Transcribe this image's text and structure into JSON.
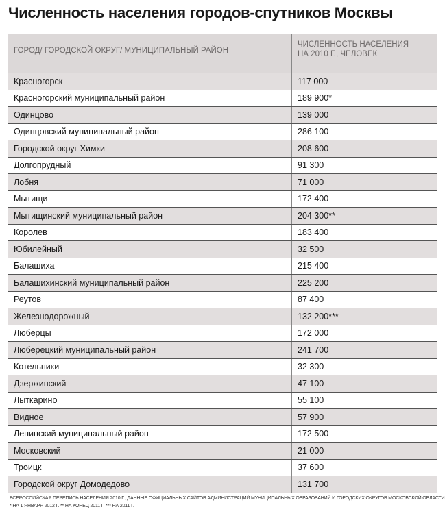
{
  "title": "Численность населения городов-спутников Москвы",
  "table": {
    "header": [
      "ГОРОД/ ГОРОДСКОЙ ОКРУГ/ МУНИЦИПАЛЬНЫЙ РАЙОН",
      "ЧИСЛЕННОСТЬ НАСЕЛЕНИЯ НА 2010 Г., ЧЕЛОВЕК"
    ],
    "rows": [
      [
        "Красногорск",
        "117 000"
      ],
      [
        "Красногорский муниципальный район",
        "189 900*"
      ],
      [
        "Одинцово",
        "139 000"
      ],
      [
        "Одинцовский муниципальный район",
        "286 100"
      ],
      [
        "Городской округ Химки",
        "208 600"
      ],
      [
        "Долгопрудный",
        "91 300"
      ],
      [
        "Лобня",
        "71 000"
      ],
      [
        "Мытищи",
        "172 400"
      ],
      [
        "Мытищинский муниципальный район",
        "204 300**"
      ],
      [
        "Королев",
        "183 400"
      ],
      [
        "Юбилейный",
        "32 500"
      ],
      [
        "Балашиха",
        "215 400"
      ],
      [
        "Балашихинский муниципальный район",
        "225 200"
      ],
      [
        "Реутов",
        "87 400"
      ],
      [
        "Железнодорожный",
        "132 200***"
      ],
      [
        "Люберцы",
        "172 000"
      ],
      [
        "Люберецкий муниципальный район",
        "241 700"
      ],
      [
        "Котельники",
        "32 300"
      ],
      [
        "Дзержинский",
        "47 100"
      ],
      [
        "Лыткарино",
        "55 100"
      ],
      [
        "Видное",
        "57 900"
      ],
      [
        "Ленинский муниципальный район",
        "172 500"
      ],
      [
        "Московский",
        "21 000"
      ],
      [
        "Троицк",
        "37 600"
      ],
      [
        "Городской округ Домодедово",
        "131 700"
      ]
    ]
  },
  "footnotes": [
    "ВСЕРОССИЙСКАЯ ПЕРЕПИСЬ НАСЕЛЕНИЯ 2010 Г., ДАННЫЕ ОФИЦИАЛЬНЫХ САЙТОВ АДМИНИСТРАЦИЙ МУНИЦИПАЛЬНЫХ ОБРАЗОВАНИЙ И ГОРОДСКИХ ОКРУГОВ МОСКОВСКОЙ ОБЛАСТИ",
    "* НА 1 ЯНВАРЯ 2012 Г. ** НА КОНЕЦ 2011 Г. *** НА 2011 Г."
  ]
}
